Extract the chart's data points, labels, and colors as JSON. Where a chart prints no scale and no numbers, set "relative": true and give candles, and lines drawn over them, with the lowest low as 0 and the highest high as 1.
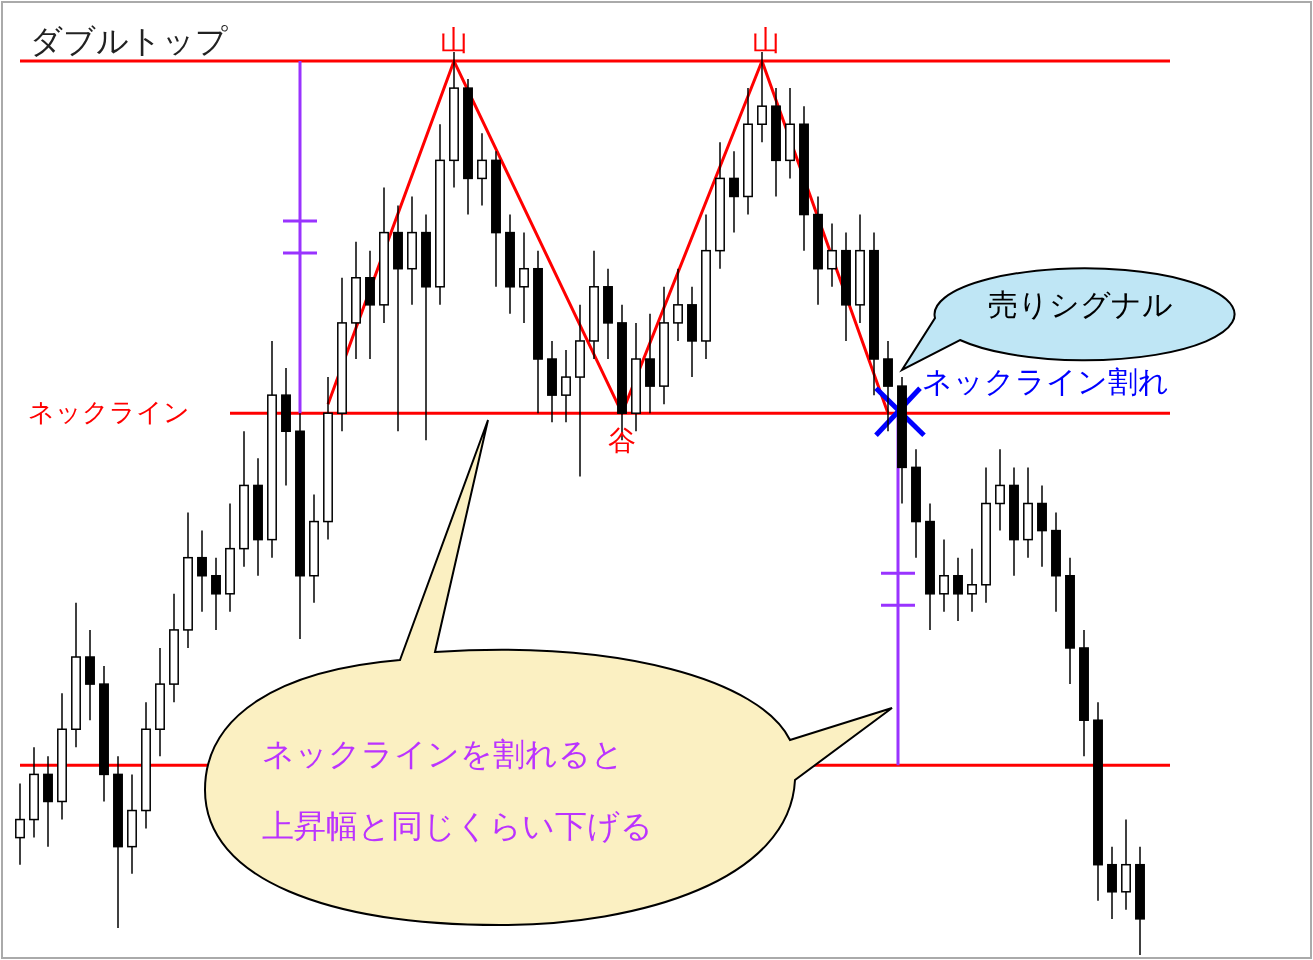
{
  "chart_data": {
    "type": "candlestick",
    "title": "ダブルトップ",
    "relative": true,
    "color": "#000000",
    "categories": [
      null,
      null,
      null,
      null,
      null,
      null,
      null,
      null,
      null,
      null,
      null,
      null,
      null,
      null,
      null,
      null,
      null,
      null,
      null,
      null,
      null,
      null,
      null,
      null,
      null,
      null,
      null,
      null,
      null,
      null,
      null,
      null,
      null,
      null,
      null,
      null,
      null,
      null,
      null,
      null,
      null,
      null,
      null,
      null,
      null,
      null,
      null,
      null,
      null,
      null,
      null,
      null,
      null,
      null,
      null,
      null,
      null,
      null,
      null,
      null,
      null,
      null,
      null,
      null,
      null,
      null,
      null,
      null,
      null,
      null,
      null,
      null,
      null,
      null,
      null,
      null,
      null,
      null,
      null,
      null,
      null
    ],
    "ohlc": [
      [
        0.13,
        0.19,
        0.1,
        0.15
      ],
      [
        0.15,
        0.23,
        0.13,
        0.2
      ],
      [
        0.2,
        0.22,
        0.12,
        0.17
      ],
      [
        0.17,
        0.29,
        0.15,
        0.25
      ],
      [
        0.25,
        0.39,
        0.23,
        0.33
      ],
      [
        0.33,
        0.36,
        0.26,
        0.3
      ],
      [
        0.3,
        0.32,
        0.17,
        0.2
      ],
      [
        0.2,
        0.22,
        0.03,
        0.12
      ],
      [
        0.12,
        0.2,
        0.09,
        0.16
      ],
      [
        0.16,
        0.28,
        0.14,
        0.25
      ],
      [
        0.25,
        0.34,
        0.22,
        0.3
      ],
      [
        0.3,
        0.4,
        0.28,
        0.36
      ],
      [
        0.36,
        0.49,
        0.34,
        0.44
      ],
      [
        0.44,
        0.47,
        0.38,
        0.42
      ],
      [
        0.42,
        0.44,
        0.36,
        0.4
      ],
      [
        0.4,
        0.5,
        0.38,
        0.45
      ],
      [
        0.45,
        0.58,
        0.43,
        0.52
      ],
      [
        0.52,
        0.55,
        0.42,
        0.46
      ],
      [
        0.46,
        0.68,
        0.44,
        0.62
      ],
      [
        0.62,
        0.65,
        0.52,
        0.58
      ],
      [
        0.58,
        0.6,
        0.35,
        0.42
      ],
      [
        0.42,
        0.51,
        0.39,
        0.48
      ],
      [
        0.48,
        0.64,
        0.46,
        0.6
      ],
      [
        0.6,
        0.75,
        0.58,
        0.7
      ],
      [
        0.7,
        0.79,
        0.66,
        0.75
      ],
      [
        0.75,
        0.78,
        0.66,
        0.72
      ],
      [
        0.72,
        0.85,
        0.7,
        0.8
      ],
      [
        0.8,
        0.83,
        0.58,
        0.76
      ],
      [
        0.76,
        0.84,
        0.72,
        0.8
      ],
      [
        0.8,
        0.82,
        0.57,
        0.74
      ],
      [
        0.74,
        0.92,
        0.72,
        0.88
      ],
      [
        0.88,
        1.0,
        0.85,
        0.96
      ],
      [
        0.96,
        0.97,
        0.82,
        0.86
      ],
      [
        0.86,
        0.91,
        0.83,
        0.88
      ],
      [
        0.88,
        0.89,
        0.74,
        0.8
      ],
      [
        0.8,
        0.82,
        0.71,
        0.74
      ],
      [
        0.74,
        0.8,
        0.7,
        0.76
      ],
      [
        0.76,
        0.78,
        0.6,
        0.66
      ],
      [
        0.66,
        0.68,
        0.59,
        0.62
      ],
      [
        0.62,
        0.67,
        0.59,
        0.64
      ],
      [
        0.64,
        0.72,
        0.53,
        0.68
      ],
      [
        0.68,
        0.78,
        0.66,
        0.74
      ],
      [
        0.74,
        0.76,
        0.66,
        0.7
      ],
      [
        0.7,
        0.72,
        0.57,
        0.6
      ],
      [
        0.6,
        0.7,
        0.58,
        0.66
      ],
      [
        0.66,
        0.71,
        0.6,
        0.63
      ],
      [
        0.63,
        0.74,
        0.61,
        0.7
      ],
      [
        0.7,
        0.76,
        0.68,
        0.72
      ],
      [
        0.72,
        0.74,
        0.64,
        0.68
      ],
      [
        0.68,
        0.82,
        0.66,
        0.78
      ],
      [
        0.78,
        0.9,
        0.76,
        0.86
      ],
      [
        0.86,
        0.89,
        0.8,
        0.84
      ],
      [
        0.84,
        0.96,
        0.82,
        0.92
      ],
      [
        0.92,
        1.0,
        0.9,
        0.94
      ],
      [
        0.94,
        0.96,
        0.84,
        0.88
      ],
      [
        0.88,
        0.96,
        0.86,
        0.92
      ],
      [
        0.92,
        0.94,
        0.78,
        0.82
      ],
      [
        0.82,
        0.84,
        0.72,
        0.76
      ],
      [
        0.76,
        0.81,
        0.74,
        0.78
      ],
      [
        0.78,
        0.8,
        0.68,
        0.72
      ],
      [
        0.72,
        0.82,
        0.7,
        0.78
      ],
      [
        0.78,
        0.8,
        0.62,
        0.66
      ],
      [
        0.66,
        0.68,
        0.58,
        0.63
      ],
      [
        0.63,
        0.64,
        0.5,
        0.54
      ],
      [
        0.54,
        0.56,
        0.44,
        0.48
      ],
      [
        0.48,
        0.5,
        0.36,
        0.4
      ],
      [
        0.4,
        0.46,
        0.38,
        0.42
      ],
      [
        0.42,
        0.44,
        0.37,
        0.4
      ],
      [
        0.4,
        0.45,
        0.38,
        0.41
      ],
      [
        0.41,
        0.54,
        0.39,
        0.5
      ],
      [
        0.5,
        0.56,
        0.47,
        0.52
      ],
      [
        0.52,
        0.54,
        0.42,
        0.46
      ],
      [
        0.46,
        0.54,
        0.44,
        0.5
      ],
      [
        0.5,
        0.52,
        0.43,
        0.47
      ],
      [
        0.47,
        0.49,
        0.38,
        0.42
      ],
      [
        0.42,
        0.44,
        0.3,
        0.34
      ],
      [
        0.34,
        0.36,
        0.22,
        0.26
      ],
      [
        0.26,
        0.28,
        0.06,
        0.1
      ],
      [
        0.1,
        0.12,
        0.04,
        0.07
      ],
      [
        0.07,
        0.15,
        0.05,
        0.1
      ],
      [
        0.1,
        0.12,
        0.0,
        0.04
      ]
    ],
    "series": [
      {
        "type": "line",
        "color": "#ff0000",
        "values": [
          null,
          null,
          null,
          null,
          null,
          null,
          null,
          null,
          null,
          null,
          null,
          null,
          null,
          null,
          null,
          null,
          null,
          null,
          null,
          null,
          null,
          null,
          0.61,
          null,
          null,
          null,
          null,
          null,
          null,
          null,
          null,
          0.99,
          null,
          null,
          null,
          null,
          null,
          null,
          null,
          null,
          null,
          null,
          null,
          0.6,
          null,
          null,
          null,
          null,
          null,
          null,
          null,
          null,
          null,
          0.99,
          null,
          null,
          null,
          null,
          null,
          null,
          null,
          null,
          0.6,
          null,
          null,
          null,
          null,
          null,
          null,
          null,
          null,
          null,
          null,
          null,
          null,
          null,
          null,
          null,
          null,
          null,
          null
        ]
      }
    ],
    "ref_lines": [
      {
        "axis": "y",
        "value": 0.6,
        "label": "ネックライン",
        "color": "#ff0000"
      },
      {
        "axis": "y",
        "value": 0.99,
        "color": "#ff0000"
      },
      {
        "axis": "y",
        "value": 0.21,
        "color": "#ff0000"
      }
    ],
    "annotations": [
      "山",
      "山",
      "谷",
      "売りシグナル",
      "ネックライン割れ",
      "ネックラインを割れると上昇幅と同じくらい下げる"
    ]
  }
}
